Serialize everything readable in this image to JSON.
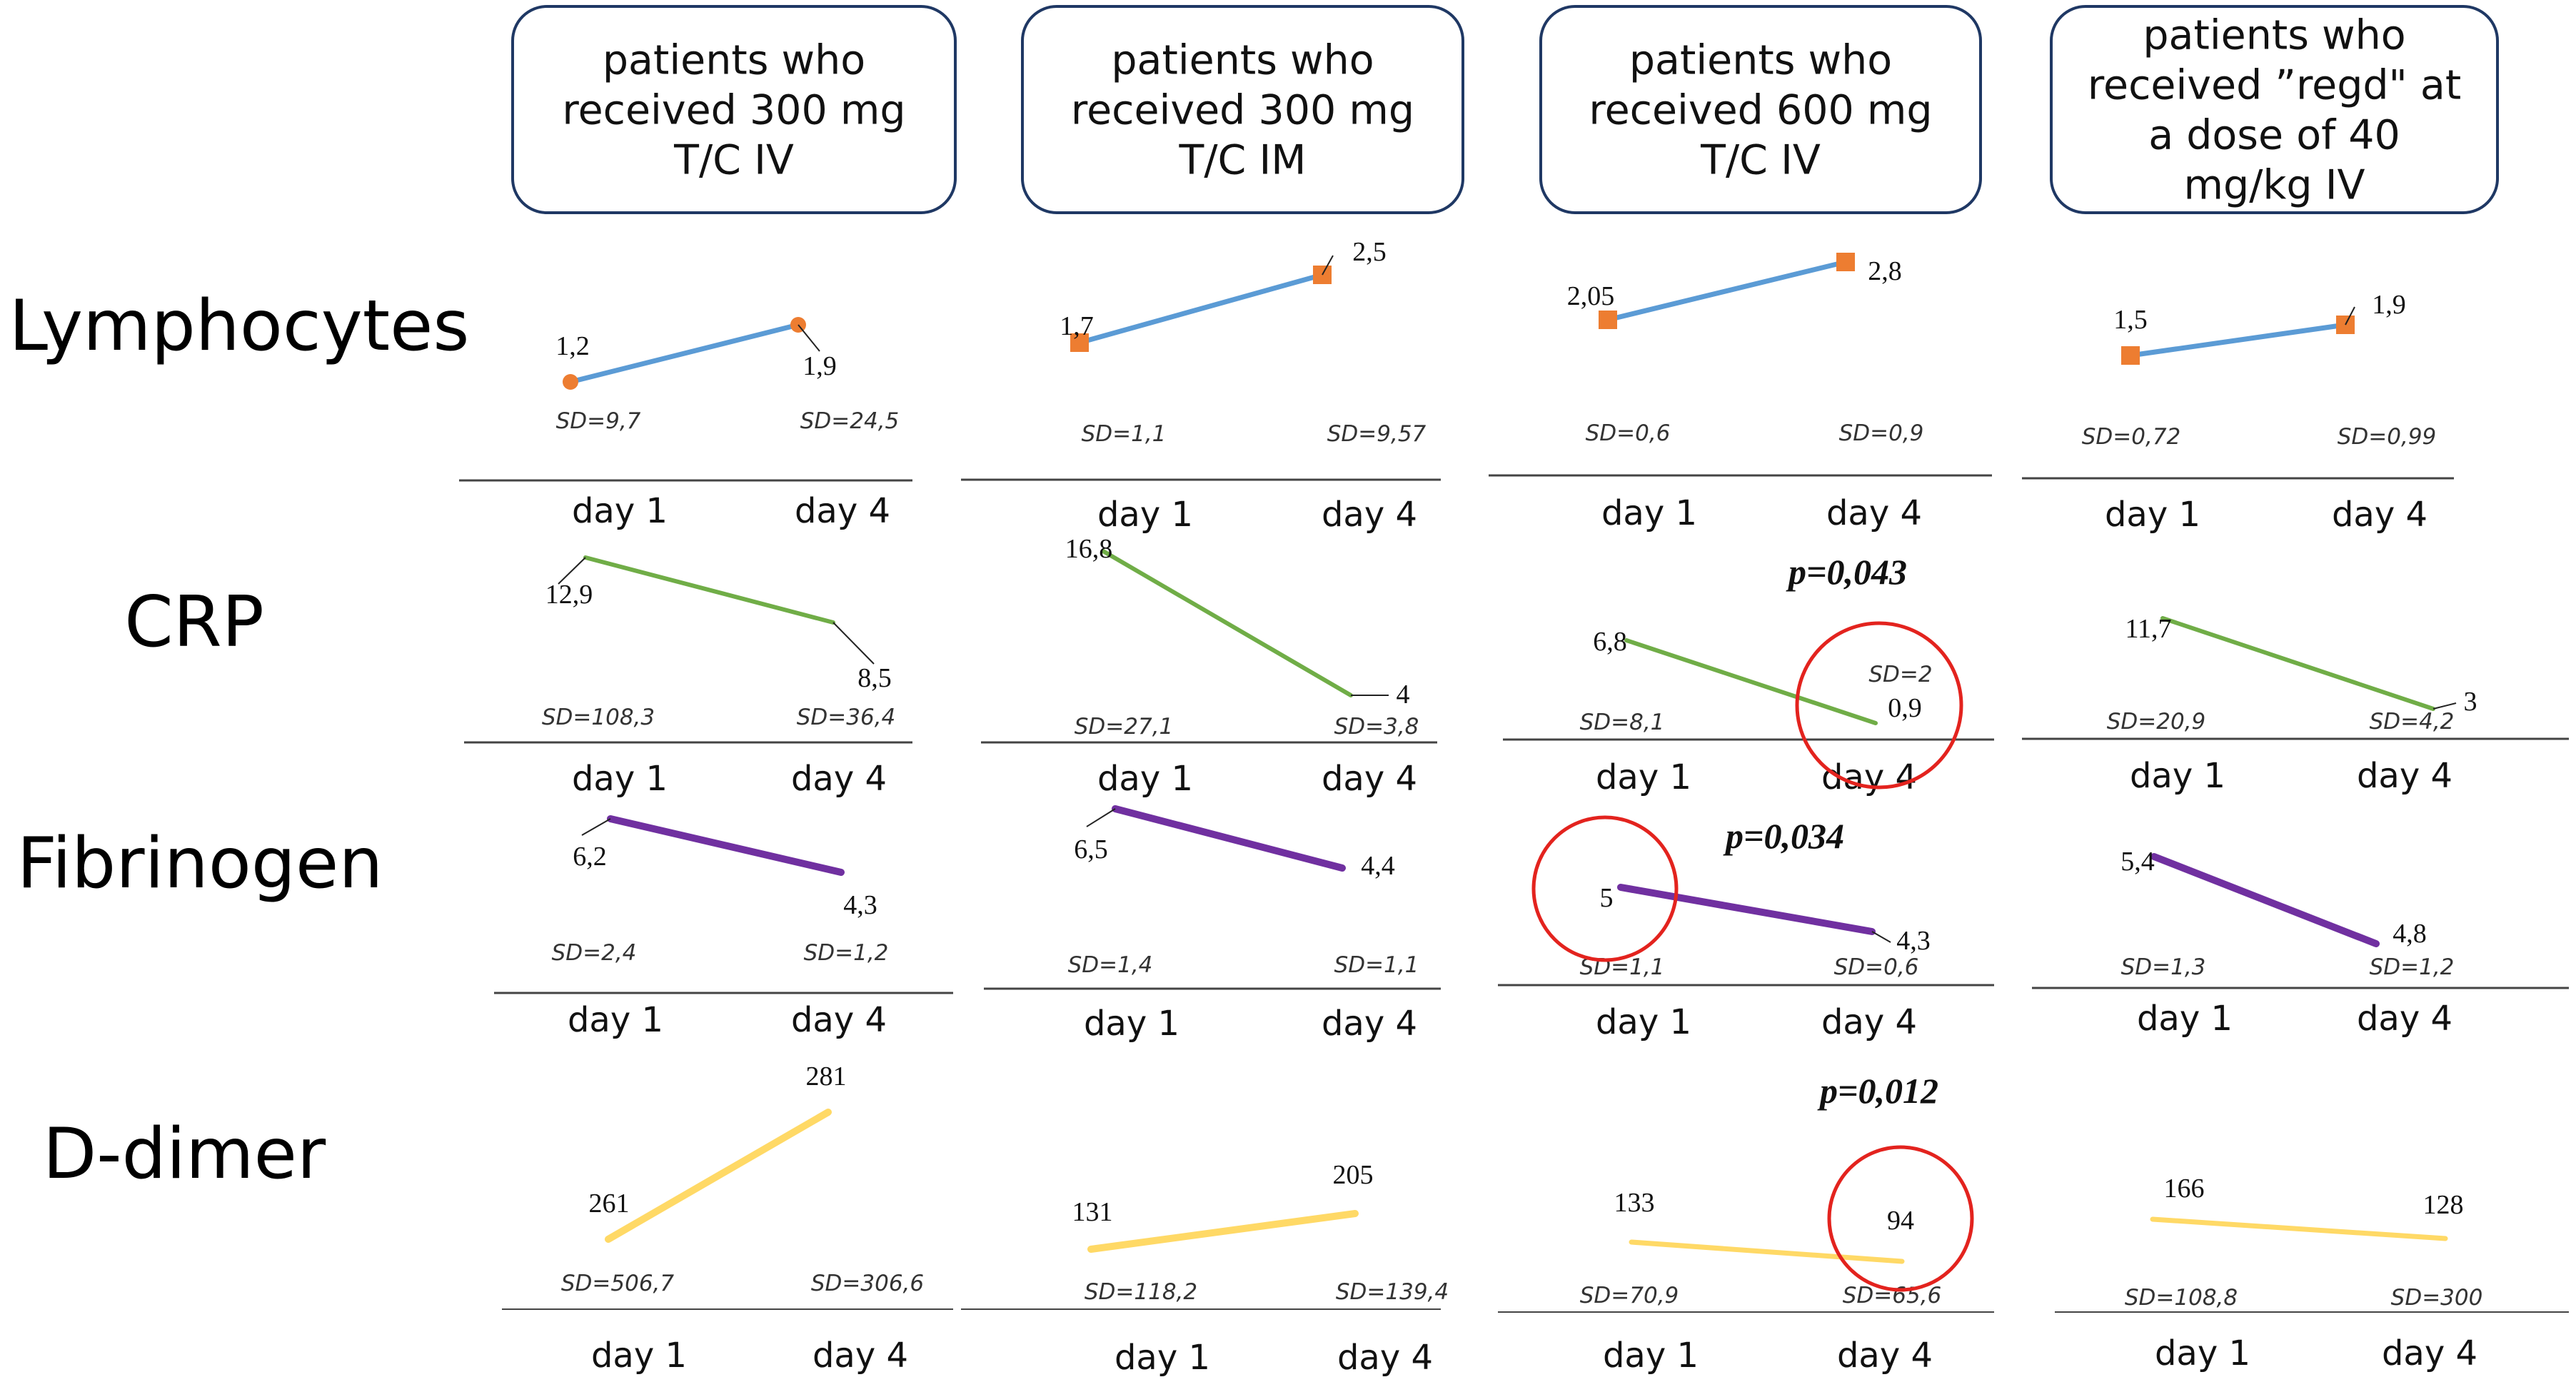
{
  "headers": [
    [
      "patients who",
      "received 300 mg",
      "T/C IV"
    ],
    [
      "patients who",
      "received 300 mg",
      "T/C IM"
    ],
    [
      "patients who",
      "received 600 mg",
      "T/C IV"
    ],
    [
      "patients who",
      "received ”regd\" at",
      "a dose of 40",
      "mg/kg IV"
    ]
  ],
  "row_labels": [
    "Lymphocytes",
    "CRP",
    "Fibrinogen",
    "D-dimer"
  ],
  "colors": {
    "lymphocytes": "#5b9bd5",
    "crp": "#70ad47",
    "fibrinogen": "#7030a0",
    "ddimer": "#ffd966",
    "marker": "#ed7d31",
    "circle": "#e3231e",
    "header_border": "#1f3864",
    "axis": "#444444"
  },
  "chart_data": [
    {
      "type": "line",
      "metric": "Lymphocytes",
      "group": "300 mg T/C IV",
      "x": [
        "day 1",
        "day 4"
      ],
      "labels": [
        "1,2",
        "1,9"
      ],
      "values": [
        1.2,
        1.9
      ],
      "sd": [
        "SD=9,7",
        "SD=24,5"
      ]
    },
    {
      "type": "line",
      "metric": "Lymphocytes",
      "group": "300 mg T/C IM",
      "x": [
        "day 1",
        "day 4"
      ],
      "labels": [
        "1,7",
        "2,5"
      ],
      "values": [
        1.7,
        2.5
      ],
      "sd": [
        "SD=1,1",
        "SD=9,57"
      ]
    },
    {
      "type": "line",
      "metric": "Lymphocytes",
      "group": "600 mg T/C IV",
      "x": [
        "day 1",
        "day 4"
      ],
      "labels": [
        "2,05",
        "2,8"
      ],
      "values": [
        2.05,
        2.8
      ],
      "sd": [
        "SD=0,6",
        "SD=0,9"
      ]
    },
    {
      "type": "line",
      "metric": "Lymphocytes",
      "group": "regd 40 mg/kg IV",
      "x": [
        "day 1",
        "day 4"
      ],
      "labels": [
        "1,5",
        "1,9"
      ],
      "values": [
        1.5,
        1.9
      ],
      "sd": [
        "SD=0,72",
        "SD=0,99"
      ]
    },
    {
      "type": "line",
      "metric": "CRP",
      "group": "300 mg T/C IV",
      "x": [
        "day 1",
        "day 4"
      ],
      "labels": [
        "12,9",
        "8,5"
      ],
      "values": [
        12.9,
        8.5
      ],
      "sd": [
        "SD=108,3",
        "SD=36,4"
      ]
    },
    {
      "type": "line",
      "metric": "CRP",
      "group": "300 mg T/C IM",
      "x": [
        "day 1",
        "day 4"
      ],
      "labels": [
        "16,8",
        "4"
      ],
      "values": [
        16.8,
        4
      ],
      "sd": [
        "SD=27,1",
        "SD=3,8"
      ]
    },
    {
      "type": "line",
      "metric": "CRP",
      "group": "600 mg T/C IV",
      "x": [
        "day 1",
        "day 4"
      ],
      "labels": [
        "6,8",
        "0,9"
      ],
      "values": [
        6.8,
        0.9
      ],
      "sd": [
        "SD=8,1",
        "SD=2"
      ],
      "p_value": "p=0,043"
    },
    {
      "type": "line",
      "metric": "CRP",
      "group": "regd 40 mg/kg IV",
      "x": [
        "day 1",
        "day 4"
      ],
      "labels": [
        "11,7",
        "3"
      ],
      "values": [
        11.7,
        3
      ],
      "sd": [
        "SD=20,9",
        "SD=4,2"
      ]
    },
    {
      "type": "line",
      "metric": "Fibrinogen",
      "group": "300 mg T/C IV",
      "x": [
        "day 1",
        "day 4"
      ],
      "labels": [
        "6,2",
        "4,3"
      ],
      "values": [
        6.2,
        4.3
      ],
      "sd": [
        "SD=2,4",
        "SD=1,2"
      ]
    },
    {
      "type": "line",
      "metric": "Fibrinogen",
      "group": "300 mg T/C IM",
      "x": [
        "day 1",
        "day 4"
      ],
      "labels": [
        "6,5",
        "4,4"
      ],
      "values": [
        6.5,
        4.4
      ],
      "sd": [
        "SD=1,4",
        "SD=1,1"
      ]
    },
    {
      "type": "line",
      "metric": "Fibrinogen",
      "group": "600 mg T/C IV",
      "x": [
        "day 1",
        "day 4"
      ],
      "labels": [
        "5",
        "4,3"
      ],
      "values": [
        5,
        4.3
      ],
      "sd": [
        "SD=1,1",
        "SD=0,6"
      ],
      "p_value": "p=0,034"
    },
    {
      "type": "line",
      "metric": "Fibrinogen",
      "group": "regd 40 mg/kg IV",
      "x": [
        "day 1",
        "day 4"
      ],
      "labels": [
        "5,4",
        "4,8"
      ],
      "values": [
        5.4,
        4.8
      ],
      "sd": [
        "SD=1,3",
        "SD=1,2"
      ]
    },
    {
      "type": "line",
      "metric": "D-dimer",
      "group": "300 mg T/C IV",
      "x": [
        "day 1",
        "day 4"
      ],
      "labels": [
        "261",
        "281"
      ],
      "values": [
        261,
        281
      ],
      "sd": [
        "SD=506,7",
        "SD=306,6"
      ]
    },
    {
      "type": "line",
      "metric": "D-dimer",
      "group": "300 mg T/C IM",
      "x": [
        "day 1",
        "day 4"
      ],
      "labels": [
        "131",
        "205"
      ],
      "values": [
        131,
        205
      ],
      "sd": [
        "SD=118,2",
        "SD=139,4"
      ]
    },
    {
      "type": "line",
      "metric": "D-dimer",
      "group": "600 mg T/C IV",
      "x": [
        "day 1",
        "day 4"
      ],
      "labels": [
        "133",
        "94"
      ],
      "values": [
        133,
        94
      ],
      "sd": [
        "SD=70,9",
        "SD=65,6"
      ],
      "p_value": "p=0,012"
    },
    {
      "type": "line",
      "metric": "D-dimer",
      "group": "regd 40 mg/kg IV",
      "x": [
        "day 1",
        "day 4"
      ],
      "labels": [
        "166",
        "128"
      ],
      "values": [
        166,
        128
      ],
      "sd": [
        "SD=108,8",
        "SD=300"
      ]
    }
  ]
}
